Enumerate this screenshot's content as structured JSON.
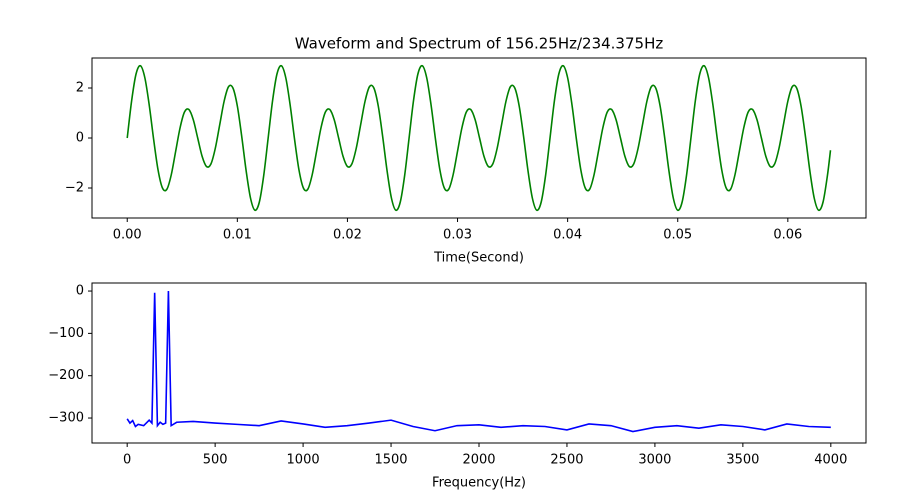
{
  "chart_data": [
    {
      "type": "line",
      "title": "Waveform and Spectrum of 156.25Hz/234.375Hz",
      "xlabel": "Time(Second)",
      "color": "#008000",
      "x": [
        0,
        0.0004,
        0.0008,
        0.0012,
        0.0016,
        0.002,
        0.0024,
        0.0028,
        0.0032,
        0.0036,
        0.004,
        0.0044,
        0.0048,
        0.0052,
        0.0056,
        0.006,
        0.0064,
        0.0068,
        0.0072,
        0.0076,
        0.008,
        0.0084,
        0.0088,
        0.0092,
        0.0096,
        0.01,
        0.0104,
        0.0108,
        0.0112,
        0.0116,
        0.012,
        0.0124,
        0.0128,
        0.0132,
        0.0136,
        0.014,
        0.0144,
        0.0148,
        0.0152,
        0.0156,
        0.016,
        0.0164,
        0.0168,
        0.0172,
        0.0176,
        0.018,
        0.0184,
        0.0188,
        0.0192,
        0.0196,
        0.02,
        0.0204,
        0.0208,
        0.0212,
        0.0216,
        0.022,
        0.0224,
        0.0228,
        0.0232,
        0.0236,
        0.024,
        0.0244,
        0.0248,
        0.0252,
        0.0256,
        0.026,
        0.0264,
        0.0268,
        0.0272,
        0.0276,
        0.028,
        0.0284,
        0.0288,
        0.0292,
        0.0296,
        0.03,
        0.0304,
        0.0308,
        0.0312,
        0.0316,
        0.032,
        0.0324,
        0.0328,
        0.0332,
        0.0336,
        0.034,
        0.0344,
        0.0348,
        0.0352,
        0.0356,
        0.036,
        0.0364,
        0.0368,
        0.0372,
        0.0376,
        0.038,
        0.0384,
        0.0388,
        0.0392,
        0.0396,
        0.04,
        0.0404,
        0.0408,
        0.0412,
        0.0416,
        0.042,
        0.0424,
        0.0428,
        0.0432,
        0.0436,
        0.044,
        0.0444,
        0.0448,
        0.0452,
        0.0456,
        0.046,
        0.0464,
        0.0468,
        0.0472,
        0.0476,
        0.048,
        0.0484,
        0.0488,
        0.0492,
        0.0496,
        0.05,
        0.0504,
        0.0508,
        0.0512,
        0.0516,
        0.052,
        0.0524,
        0.0528,
        0.0532,
        0.0536,
        0.054,
        0.0544,
        0.0548,
        0.0552,
        0.0556,
        0.056,
        0.0564,
        0.0568,
        0.0572,
        0.0576,
        0.058,
        0.0584,
        0.0588,
        0.0592,
        0.0596,
        0.06,
        0.0604,
        0.0608,
        0.0612,
        0.0616,
        0.062,
        0.0624,
        0.0628,
        0.0632,
        0.0636,
        0.063875
      ],
      "values": [
        0,
        1.49,
        2.56,
        2.89,
        2.41,
        1.31,
        -0.06,
        -1.28,
        -2,
        -2.05,
        -1.47,
        -0.53,
        0.41,
        1.04,
        1.14,
        0.73,
        0,
        -0.73,
        -1.14,
        -1.04,
        -0.41,
        0.53,
        1.47,
        2.05,
        2,
        1.28,
        0.06,
        -1.31,
        -2.41,
        -2.89,
        -2.56,
        -1.49,
        0,
        1.49,
        2.56,
        2.89,
        2.41,
        1.31,
        -0.06,
        -1.28,
        -2,
        -2.05,
        -1.47,
        -0.53,
        0.41,
        1.04,
        1.14,
        0.73,
        0,
        -0.73,
        -1.14,
        -1.04,
        -0.41,
        0.53,
        1.47,
        2.05,
        2,
        1.28,
        0.06,
        -1.31,
        -2.41,
        -2.89,
        -2.56,
        -1.49,
        0,
        1.49,
        2.56,
        2.89,
        2.41,
        1.31,
        -0.06,
        -1.28,
        -2,
        -2.05,
        -1.47,
        -0.53,
        0.41,
        1.04,
        1.14,
        0.73,
        0,
        -0.73,
        -1.14,
        -1.04,
        -0.41,
        0.53,
        1.47,
        2.05,
        2,
        1.28,
        0.06,
        -1.31,
        -2.41,
        -2.89,
        -2.56,
        -1.49,
        0,
        1.49,
        2.56,
        2.89,
        2.41,
        1.31,
        -0.06,
        -1.28,
        -2,
        -2.05,
        -1.47,
        -0.53,
        0.41,
        1.04,
        1.14,
        0.73,
        0,
        -0.73,
        -1.14,
        -1.04,
        -0.41,
        0.53,
        1.47,
        2.05,
        2,
        1.28,
        0.06,
        -1.31,
        -2.41,
        -2.89,
        -2.56,
        -1.49,
        0,
        1.49,
        2.56,
        2.89,
        2.41,
        1.31,
        -0.06,
        -1.28,
        -2,
        -2.05,
        -1.47,
        -0.53,
        0.41,
        1.04,
        1.14,
        0.73,
        0,
        -0.73,
        -1.14,
        -1.04,
        -0.41,
        0.53,
        1.47,
        2.05,
        2,
        1.28,
        0.06,
        -1.31,
        -2.41,
        -2.89,
        -2.56,
        -1.49,
        -0.49
      ],
      "xlim": [
        -0.0032,
        0.0671
      ],
      "xticks": [
        {
          "value": 0,
          "label": "0.00"
        },
        0.01,
        0.02,
        0.03,
        0.04,
        0.05,
        0.06
      ],
      "ylim": [
        -3.2,
        3.2
      ],
      "yticks": [
        {
          "value": -2,
          "label": "−2"
        },
        0,
        2
      ]
    },
    {
      "type": "line",
      "xlabel": "Frequency(Hz)",
      "color": "#0000ff",
      "x": [
        0,
        15.625,
        31.25,
        46.875,
        62.5,
        93.75,
        125,
        140.625,
        156.25,
        171.875,
        187.5,
        203.125,
        218.75,
        234.375,
        250,
        281.25,
        375,
        500,
        625,
        750,
        875,
        1000,
        1125,
        1250,
        1375,
        1500,
        1625,
        1750,
        1875,
        2000,
        2125,
        2250,
        2375,
        2500,
        2625,
        2750,
        2875,
        3000,
        3125,
        3250,
        3375,
        3500,
        3625,
        3750,
        3875,
        4000
      ],
      "values": [
        -302,
        -312,
        -306,
        -320,
        -315,
        -318,
        -305,
        -312,
        -4,
        -318,
        -310,
        -315,
        -312,
        0,
        -318,
        -310,
        -308,
        -312,
        -315,
        -318,
        -307,
        -314,
        -322,
        -318,
        -312,
        -305,
        -320,
        -330,
        -318,
        -316,
        -322,
        -318,
        -320,
        -328,
        -314,
        -318,
        -332,
        -322,
        -318,
        -324,
        -316,
        -320,
        -328,
        -314,
        -320,
        -322
      ],
      "xlim": [
        -200,
        4200
      ],
      "xticks": [
        0,
        500,
        1000,
        1500,
        2000,
        2500,
        3000,
        3500,
        4000
      ],
      "ylim": [
        -359,
        19
      ],
      "yticks": [
        {
          "value": -300,
          "label": "−300"
        },
        {
          "value": -200,
          "label": "−200"
        },
        {
          "value": -100,
          "label": "−100"
        },
        0
      ]
    }
  ]
}
